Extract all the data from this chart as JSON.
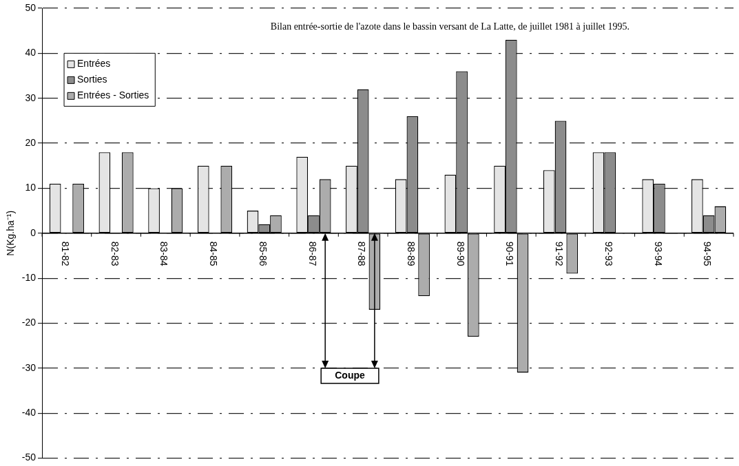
{
  "chart_data": {
    "type": "bar",
    "title": "Bilan entrée-sortie de l'azote dans le bassin versant de La Latte, de juillet 1981 à juillet 1995.",
    "ylabel": "N(Kg.ha⁻¹)",
    "categories": [
      "81-82",
      "82-83",
      "83-84",
      "84-85",
      "85-86",
      "86-87",
      "87-88",
      "88-89",
      "89-90",
      "90-91",
      "91-92",
      "92-93",
      "93-94",
      "94-95"
    ],
    "series": [
      {
        "name": "Entrées",
        "color": "#e4e4e4",
        "values": [
          11,
          18,
          10,
          15,
          5,
          17,
          15,
          12,
          13,
          15,
          14,
          18,
          12,
          12
        ]
      },
      {
        "name": "Sorties",
        "color": "#8c8c8c",
        "values": [
          null,
          null,
          null,
          null,
          2,
          4,
          32,
          26,
          36,
          43,
          25,
          18,
          11,
          4
        ]
      },
      {
        "name": "Entrées - Sorties",
        "color": "#acacac",
        "values": [
          11,
          18,
          10,
          15,
          4,
          12,
          -17,
          -14,
          -23,
          -31,
          -9,
          null,
          null,
          6
        ]
      }
    ],
    "ylim": [
      -50,
      50
    ],
    "yticks": [
      -50,
      -40,
      -30,
      -20,
      -10,
      0,
      10,
      20,
      30,
      40,
      50
    ],
    "grid": "y",
    "legend": "top left",
    "bands": [
      {
        "axis": "x",
        "from": "86-87",
        "to": "87-88",
        "label": "Coupe"
      }
    ]
  }
}
